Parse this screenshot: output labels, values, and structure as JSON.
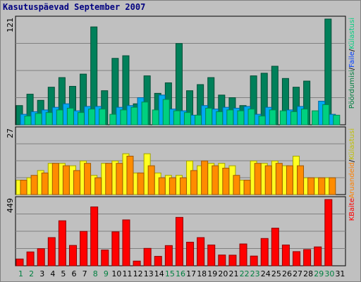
{
  "page": {
    "title": "Kasutuspäevad September 2007"
  },
  "chart_data": [
    {
      "type": "bar",
      "panel": "top",
      "ymax_label": "121",
      "ylim": [
        0,
        121
      ],
      "categories": [
        "1",
        "2",
        "3",
        "4",
        "5",
        "6",
        "7",
        "8",
        "9",
        "10",
        "11",
        "12",
        "13",
        "14",
        "15",
        "16",
        "17",
        "18",
        "19",
        "20",
        "21",
        "22",
        "23",
        "24",
        "25",
        "26",
        "27",
        "28",
        "29",
        "30",
        "31"
      ],
      "legend": [
        {
          "label": "Pöördumisi",
          "color": "#008040"
        },
        {
          "label": "/",
          "color": "#000000"
        },
        {
          "label": "Faile",
          "color": "#0040ff"
        },
        {
          "label": "/",
          "color": "#000000"
        },
        {
          "label": "Külastusi",
          "color": "#00d080"
        }
      ],
      "series": [
        {
          "name": "Pöördumisi",
          "color": "#00805a",
          "values": [
            22,
            35,
            28,
            43,
            54,
            44,
            58,
            112,
            39,
            76,
            79,
            24,
            56,
            36,
            48,
            93,
            39,
            46,
            54,
            34,
            31,
            22,
            56,
            59,
            67,
            53,
            43,
            50,
            14,
            121,
            0
          ]
        },
        {
          "name": "Faile",
          "color": "#00aaf0",
          "values": [
            12,
            15,
            17,
            20,
            24,
            16,
            21,
            21,
            0,
            20,
            22,
            31,
            0,
            34,
            18,
            16,
            11,
            22,
            18,
            20,
            19,
            21,
            12,
            20,
            0,
            17,
            21,
            0,
            27,
            12,
            0
          ]
        },
        {
          "name": "Külastusi",
          "color": "#00d080",
          "values": [
            10,
            13,
            14,
            17,
            19,
            14,
            18,
            18,
            12,
            17,
            20,
            26,
            17,
            29,
            16,
            14,
            11,
            19,
            15,
            17,
            16,
            18,
            10,
            17,
            16,
            15,
            18,
            16,
            23,
            11,
            0
          ]
        }
      ]
    },
    {
      "type": "bar",
      "panel": "middle",
      "ymax_label": "27",
      "ylim": [
        0,
        27
      ],
      "categories": [
        "1",
        "2",
        "3",
        "4",
        "5",
        "6",
        "7",
        "8",
        "9",
        "10",
        "11",
        "12",
        "13",
        "14",
        "15",
        "16",
        "17",
        "18",
        "19",
        "20",
        "21",
        "22",
        "23",
        "24",
        "25",
        "26",
        "27",
        "28",
        "29",
        "30",
        "31"
      ],
      "legend": [
        {
          "label": "Aruandeid",
          "color": "#ff8000"
        },
        {
          "label": "/",
          "color": "#000000"
        },
        {
          "label": "Külastusi",
          "color": "#c0c000"
        }
      ],
      "series": [
        {
          "name": "Külastusi",
          "color": "#ffff20",
          "values": [
            6,
            7,
            10,
            13,
            13,
            12,
            14,
            8,
            13,
            14,
            17,
            9,
            17,
            9,
            8,
            8,
            14,
            12,
            13,
            13,
            12,
            6,
            14,
            13,
            14,
            12,
            16,
            7,
            7,
            7,
            0
          ]
        },
        {
          "name": "Aruandeid",
          "color": "#ff8c00",
          "values": [
            6,
            8,
            9,
            13,
            12,
            10,
            13,
            7,
            13,
            13,
            16,
            9,
            12,
            7,
            7,
            7,
            10,
            14,
            12,
            11,
            8,
            6,
            13,
            12,
            13,
            12,
            12,
            7,
            7,
            7,
            0
          ]
        }
      ]
    },
    {
      "type": "bar",
      "panel": "bottom",
      "ymax_label": "449",
      "ylim": [
        0,
        449
      ],
      "categories": [
        "1",
        "2",
        "3",
        "4",
        "5",
        "6",
        "7",
        "8",
        "9",
        "10",
        "11",
        "12",
        "13",
        "14",
        "15",
        "16",
        "17",
        "18",
        "19",
        "20",
        "21",
        "22",
        "23",
        "24",
        "25",
        "26",
        "27",
        "28",
        "29",
        "30",
        "31"
      ],
      "legend": [
        {
          "label": "KBaite",
          "color": "#ff0000"
        }
      ],
      "series": [
        {
          "name": "KBaite",
          "color": "#ff0000",
          "values": [
            46,
            94,
            116,
            191,
            305,
            138,
            233,
            399,
            107,
            230,
            311,
            32,
            118,
            64,
            137,
            328,
            160,
            191,
            141,
            73,
            72,
            148,
            66,
            185,
            255,
            141,
            96,
            110,
            128,
            449,
            0
          ]
        }
      ]
    }
  ],
  "x_axis": {
    "days": [
      "1",
      "2",
      "3",
      "4",
      "5",
      "6",
      "7",
      "8",
      "9",
      "10",
      "11",
      "12",
      "13",
      "14",
      "15",
      "16",
      "17",
      "18",
      "19",
      "20",
      "21",
      "22",
      "23",
      "24",
      "25",
      "26",
      "27",
      "28",
      "29",
      "30",
      "31"
    ],
    "weekend_color": "#008040",
    "weekday_color": "#000000",
    "weekend_days": [
      "1",
      "2",
      "8",
      "9",
      "15",
      "16",
      "22",
      "23",
      "29",
      "30"
    ]
  }
}
